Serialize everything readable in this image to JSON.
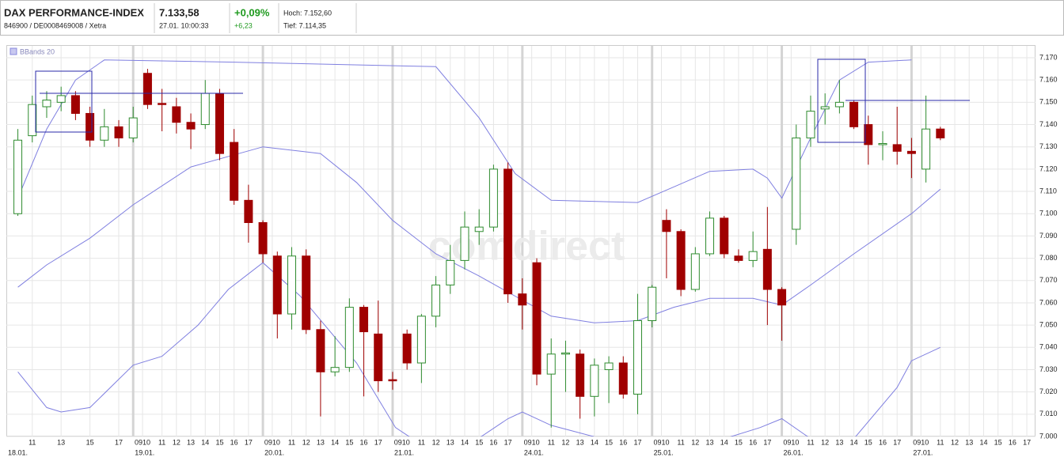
{
  "header": {
    "title": "DAX PERFORMANCE-INDEX",
    "ids": "846900 / DE0008469008 / Xetra",
    "price": "7.133,58",
    "time": "27.01. 10:00:33",
    "change_pct": "+0,09%",
    "change": "+6,23",
    "high": "Hoch: 7.152,60",
    "low": "Tief: 7.114,35"
  },
  "chart_data": {
    "type": "candlestick",
    "watermark": "comdirect",
    "up_color": "#2e8b2e",
    "down_color": "#a00000",
    "open": [
      7100,
      7135,
      7148,
      7150,
      7153,
      7145,
      7133,
      7139,
      7134,
      7163,
      7149.5,
      7148,
      7141,
      7140,
      7154,
      7132,
      7106,
      7096,
      7081,
      7055,
      7081,
      7048,
      7029,
      7031,
      7058,
      7046,
      7025.5,
      7046,
      7033,
      7054,
      7068,
      7079,
      7092,
      7094,
      7120,
      7064,
      7078,
      7028,
      7037,
      7037,
      7018,
      7030,
      7033,
      7019,
      7052,
      7097,
      7092,
      7066,
      7082,
      7098,
      7081,
      7079,
      7084,
      7066,
      7093,
      7134,
      7147,
      7148,
      7150,
      7140,
      7131,
      7131,
      7128,
      7120,
      7138
    ],
    "high": [
      7138,
      7153,
      7155,
      7157,
      7155,
      7148,
      7147,
      7142,
      7148,
      7165,
      7156,
      7152,
      7145,
      7160,
      7156,
      7138,
      7113,
      7097,
      7083,
      7085,
      7084,
      7052,
      7045,
      7062,
      7059,
      7061,
      7029,
      7048,
      7055,
      7072,
      7086,
      7101,
      7102,
      7122,
      7123,
      7071,
      7080,
      7044,
      7043,
      7039,
      7035,
      7036,
      7036,
      7064,
      7068,
      7102,
      7093,
      7085,
      7101,
      7099,
      7084,
      7092,
      7103,
      7067,
      7140,
      7153,
      7154,
      7160,
      7151,
      7144,
      7137,
      7148,
      7134,
      7153,
      7139
    ],
    "low": [
      7099,
      7132,
      7143,
      7146,
      7142,
      7130,
      7130,
      7130,
      7132,
      7147,
      7137,
      7136,
      7129,
      7138,
      7124,
      7104,
      7087,
      7078,
      7044,
      7048,
      7046,
      7009,
      7027,
      7029,
      7018,
      7020,
      7021,
      7030,
      7024,
      7049,
      7064,
      7075,
      7086,
      7092,
      7060,
      7048,
      7023,
      7004,
      7020,
      7008,
      7009,
      7015,
      7017,
      7010,
      7049,
      7071,
      7063,
      7065,
      7081,
      7080,
      7078,
      7076,
      7050,
      7043,
      7086,
      7130,
      7140,
      7145,
      7138,
      7122,
      7124,
      7122,
      7116,
      7114,
      7133
    ],
    "close": [
      7133,
      7149,
      7151,
      7153,
      7145,
      7133,
      7139,
      7134,
      7143,
      7149,
      7149,
      7141,
      7138,
      7154,
      7127,
      7106,
      7096,
      7082,
      7055,
      7081,
      7048,
      7029,
      7031,
      7058,
      7047,
      7025,
      7025,
      7033,
      7054,
      7068,
      7079,
      7094,
      7094,
      7120,
      7064,
      7059,
      7028,
      7037,
      7037.5,
      7018,
      7032,
      7033,
      7019,
      7052,
      7067,
      7092,
      7066,
      7082,
      7098,
      7082,
      7079,
      7083,
      7066,
      7059,
      7134,
      7146,
      7148,
      7150,
      7139,
      7131,
      7131.5,
      7128,
      7127,
      7138,
      7134
    ],
    "bands": {
      "name": "BBands 20",
      "color": "#7f7fe0",
      "lines": [
        {
          "x": [
            0,
            2,
            4,
            6,
            15,
            29,
            32,
            34.5,
            37,
            43,
            45.5,
            48,
            51,
            52,
            53,
            55,
            57,
            59,
            62
          ],
          "values": [
            7107,
            7138,
            7160,
            7169,
            7168,
            7166,
            7143,
            7118,
            7106,
            7105,
            7112,
            7119,
            7120,
            7116,
            7107,
            7134,
            7160,
            7168,
            7169
          ]
        },
        {
          "x": [
            0,
            2,
            5,
            8,
            12,
            17,
            21,
            23.5,
            26,
            29,
            32,
            34.5,
            37,
            40,
            43,
            45.5,
            48,
            51,
            53,
            55,
            58,
            62,
            64
          ],
          "values": [
            7067,
            7077,
            7089,
            7104,
            7121,
            7130,
            7127,
            7114,
            7097,
            7082,
            7072,
            7063,
            7054,
            7051,
            7052,
            7058,
            7062,
            7062,
            7059,
            7068,
            7082,
            7100,
            7111
          ]
        },
        {
          "x": [
            0,
            2,
            3,
            5,
            8,
            10,
            12.5,
            14.6,
            17,
            19.6,
            23.5,
            26.2,
            29,
            31.7,
            34,
            35,
            37,
            40.5,
            48,
            51.5,
            53,
            55,
            58,
            61,
            62,
            64
          ],
          "values": [
            7029,
            7013,
            7011,
            7013,
            7032,
            7036,
            7050,
            7066,
            7078,
            7063,
            7033,
            7004,
            6992,
            6998,
            7008,
            7011,
            7005,
            6999,
            6997,
            7004,
            7008,
            6999,
            6999,
            7022,
            7034,
            7040
          ]
        }
      ]
    },
    "xlim": [
      -0.8,
      70.6
    ],
    "xticks": [
      {
        "value": 1,
        "label": "11"
      },
      {
        "value": 3,
        "label": "13"
      },
      {
        "value": 5,
        "label": "15"
      },
      {
        "value": 7,
        "label": "17"
      },
      {
        "value": 8.65,
        "label": "0910"
      },
      {
        "value": 10,
        "label": "11"
      },
      {
        "value": 11,
        "label": "12"
      },
      {
        "value": 12,
        "label": "13"
      },
      {
        "value": 13,
        "label": "14"
      },
      {
        "value": 14,
        "label": "15"
      },
      {
        "value": 15,
        "label": "16"
      },
      {
        "value": 16,
        "label": "17"
      },
      {
        "value": 17.65,
        "label": "0910"
      },
      {
        "value": 19,
        "label": "11"
      },
      {
        "value": 20,
        "label": "12"
      },
      {
        "value": 21,
        "label": "13"
      },
      {
        "value": 22,
        "label": "14"
      },
      {
        "value": 23,
        "label": "15"
      },
      {
        "value": 24,
        "label": "16"
      },
      {
        "value": 25,
        "label": "17"
      },
      {
        "value": 26.65,
        "label": "0910"
      },
      {
        "value": 28,
        "label": "11"
      },
      {
        "value": 29,
        "label": "12"
      },
      {
        "value": 30,
        "label": "13"
      },
      {
        "value": 31,
        "label": "14"
      },
      {
        "value": 32,
        "label": "15"
      },
      {
        "value": 33,
        "label": "16"
      },
      {
        "value": 34,
        "label": "17"
      },
      {
        "value": 35.65,
        "label": "0910"
      },
      {
        "value": 37,
        "label": "11"
      },
      {
        "value": 38,
        "label": "12"
      },
      {
        "value": 39,
        "label": "13"
      },
      {
        "value": 40,
        "label": "14"
      },
      {
        "value": 41,
        "label": "15"
      },
      {
        "value": 42,
        "label": "16"
      },
      {
        "value": 43,
        "label": "17"
      },
      {
        "value": 44.65,
        "label": "0910"
      },
      {
        "value": 46,
        "label": "11"
      },
      {
        "value": 47,
        "label": "12"
      },
      {
        "value": 48,
        "label": "13"
      },
      {
        "value": 49,
        "label": "14"
      },
      {
        "value": 50,
        "label": "15"
      },
      {
        "value": 51,
        "label": "16"
      },
      {
        "value": 52,
        "label": "17"
      },
      {
        "value": 53.65,
        "label": "0910"
      },
      {
        "value": 55,
        "label": "11"
      },
      {
        "value": 56,
        "label": "12"
      },
      {
        "value": 57,
        "label": "13"
      },
      {
        "value": 58,
        "label": "14"
      },
      {
        "value": 59,
        "label": "15"
      },
      {
        "value": 60,
        "label": "16"
      },
      {
        "value": 61,
        "label": "17"
      },
      {
        "value": 62.65,
        "label": "0910"
      },
      {
        "value": 64,
        "label": "11"
      },
      {
        "value": 65,
        "label": "12"
      },
      {
        "value": 66,
        "label": "13"
      },
      {
        "value": 67,
        "label": "14"
      },
      {
        "value": 68,
        "label": "15"
      },
      {
        "value": 69,
        "label": "16"
      },
      {
        "value": 70,
        "label": "17"
      }
    ],
    "day_ticks": [
      {
        "value": -0.8,
        "label": "18.01."
      },
      {
        "value": 8,
        "label": "19.01."
      },
      {
        "value": 17,
        "label": "20.01."
      },
      {
        "value": 26,
        "label": "21.01."
      },
      {
        "value": 35,
        "label": "24.01."
      },
      {
        "value": 44,
        "label": "25.01."
      },
      {
        "value": 53,
        "label": "26.01."
      },
      {
        "value": 62,
        "label": "27.01."
      }
    ],
    "ylim": [
      7000,
      7170
    ],
    "yticks": [
      {
        "value": 7000,
        "label": "7.000"
      },
      {
        "value": 7010,
        "label": "7.010"
      },
      {
        "value": 7020,
        "label": "7.020"
      },
      {
        "value": 7030,
        "label": "7.030"
      },
      {
        "value": 7040,
        "label": "7.040"
      },
      {
        "value": 7050,
        "label": "7.050"
      },
      {
        "value": 7060,
        "label": "7.060"
      },
      {
        "value": 7070,
        "label": "7.070"
      },
      {
        "value": 7080,
        "label": "7.080"
      },
      {
        "value": 7090,
        "label": "7.090"
      },
      {
        "value": 7100,
        "label": "7.100"
      },
      {
        "value": 7110,
        "label": "7.110"
      },
      {
        "value": 7120,
        "label": "7.120"
      },
      {
        "value": 7130,
        "label": "7.130"
      },
      {
        "value": 7140,
        "label": "7.140"
      },
      {
        "value": 7150,
        "label": "7.150"
      },
      {
        "value": 7160,
        "label": "7.160"
      },
      {
        "value": 7170,
        "label": "7.170"
      }
    ],
    "grid": true
  }
}
